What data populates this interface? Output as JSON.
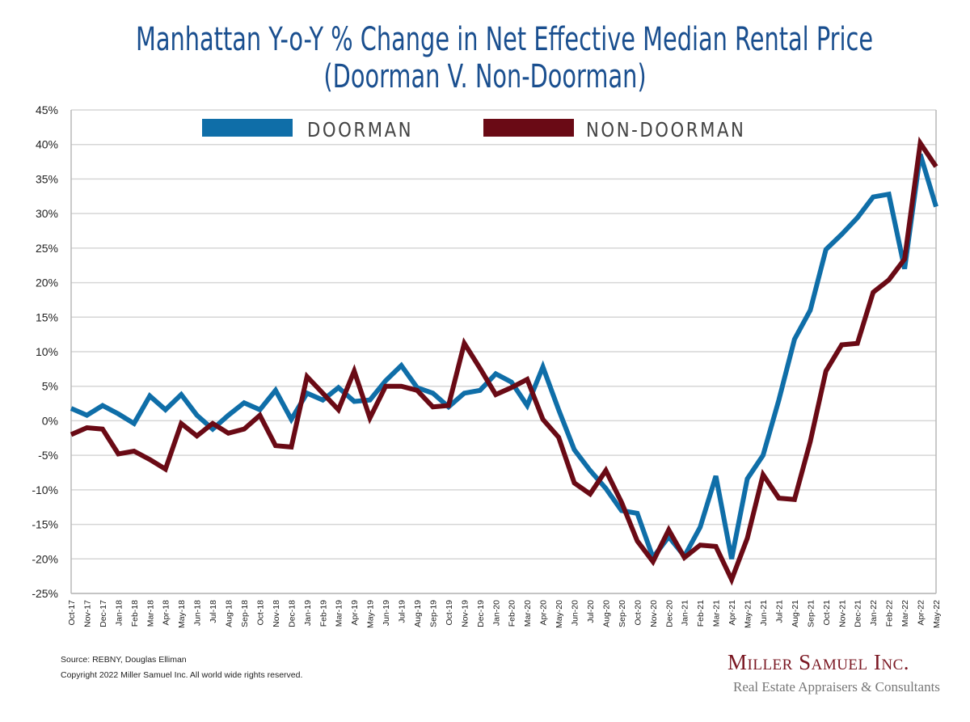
{
  "header": {
    "title_line1": "Manhattan Y-o-Y % Change in Net Effective Median Rental Price",
    "title_line2": "(Doorman V. Non-Doorman)"
  },
  "footer": {
    "source": "Source: REBNY, Douglas Elliman",
    "copyright": "Copyright 2022 Miller Samuel Inc.  All world wide rights reserved.",
    "brand": "Miller Samuel Inc.",
    "tagline": "Real Estate Appraisers & Consultants"
  },
  "chart_data": {
    "type": "line",
    "title": "Manhattan Y-o-Y % Change in Net Effective Median Rental Price (Doorman V. Non-Doorman)",
    "xlabel": "",
    "ylabel": "",
    "ylim": [
      -25,
      45
    ],
    "ytick_step": 5,
    "y_tick_labels": [
      "45%",
      "40%",
      "35%",
      "30%",
      "25%",
      "20%",
      "15%",
      "10%",
      "5%",
      "0%",
      "-5%",
      "-10%",
      "-15%",
      "-20%",
      "-25%"
    ],
    "grid": true,
    "legend_position": "top-center",
    "categories": [
      "Oct-17",
      "Nov-17",
      "Dec-17",
      "Jan-18",
      "Feb-18",
      "Mar-18",
      "Apr-18",
      "May-18",
      "Jun-18",
      "Jul-18",
      "Aug-18",
      "Sep-18",
      "Oct-18",
      "Nov-18",
      "Dec-18",
      "Jan-19",
      "Feb-19",
      "Mar-19",
      "Apr-19",
      "May-19",
      "Jun-19",
      "Jul-19",
      "Aug-19",
      "Sep-19",
      "Oct-19",
      "Nov-19",
      "Dec-19",
      "Jan-20",
      "Feb-20",
      "Mar-20",
      "Apr-20",
      "May-20",
      "Jun-20",
      "Jul-20",
      "Aug-20",
      "Sep-20",
      "Oct-20",
      "Nov-20",
      "Dec-20",
      "Jan-21",
      "Feb-21",
      "Mar-21",
      "Apr-21",
      "May-21",
      "Jun-21",
      "Jul-21",
      "Aug-21",
      "Sep-21",
      "Oct-21",
      "Nov-21",
      "Dec-21",
      "Jan-22",
      "Feb-22",
      "Mar-22",
      "Apr-22",
      "May-22"
    ],
    "series": [
      {
        "name": "DOORMAN",
        "color": "#0f6ea8",
        "values": [
          1.8,
          0.8,
          2.2,
          1.0,
          -0.4,
          3.6,
          1.6,
          3.8,
          0.8,
          -1.2,
          0.8,
          2.6,
          1.6,
          4.4,
          0.2,
          4.0,
          3.0,
          4.8,
          2.8,
          3.0,
          5.8,
          8.0,
          4.8,
          4.0,
          2.0,
          4.0,
          4.4,
          6.8,
          5.6,
          2.2,
          7.8,
          1.6,
          -4.2,
          -7.2,
          -9.8,
          -13.0,
          -13.4,
          -19.8,
          -16.8,
          -19.6,
          -15.4,
          -8.0,
          -20.0,
          -8.4,
          -5.0,
          3.0,
          11.8,
          16.0,
          24.8,
          27.0,
          29.4,
          32.4,
          32.8,
          22.0,
          38.6,
          31.0
        ]
      },
      {
        "name": "NON-DOORMAN",
        "color": "#6a0a15",
        "values": [
          -2.0,
          -1.0,
          -1.2,
          -4.8,
          -4.4,
          -5.6,
          -7.0,
          -0.4,
          -2.2,
          -0.4,
          -1.8,
          -1.2,
          0.8,
          -3.6,
          -3.8,
          6.4,
          4.0,
          1.6,
          7.2,
          0.4,
          5.0,
          5.0,
          4.4,
          2.0,
          2.2,
          11.2,
          7.6,
          3.8,
          4.8,
          6.0,
          0.2,
          -2.4,
          -9.0,
          -10.6,
          -7.2,
          -11.8,
          -17.4,
          -20.4,
          -15.8,
          -19.8,
          -18.0,
          -18.2,
          -23.0,
          -17.0,
          -7.8,
          -11.2,
          -11.4,
          -3.0,
          7.2,
          11.0,
          11.2,
          18.6,
          20.4,
          23.4,
          40.2,
          36.8
        ]
      }
    ]
  }
}
